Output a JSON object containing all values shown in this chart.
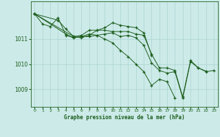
{
  "title": "Graphe pression niveau de la mer (hPa)",
  "bg_color": "#cceae8",
  "grid_color": "#aad4d0",
  "line_color": "#1a5c1a",
  "marker_color": "#1a5c1a",
  "xlim": [
    -0.5,
    23.5
  ],
  "ylim": [
    1008.3,
    1012.5
  ],
  "yticks": [
    1009,
    1010,
    1011
  ],
  "xticks": [
    0,
    1,
    2,
    3,
    4,
    5,
    6,
    7,
    8,
    9,
    10,
    11,
    12,
    13,
    14,
    15,
    16,
    17,
    18,
    19,
    20,
    21,
    22,
    23
  ],
  "series": [
    {
      "x": [
        0,
        1,
        2,
        3,
        4,
        5,
        6,
        7,
        8,
        9,
        10,
        11,
        12,
        13,
        14,
        15,
        16,
        17,
        18,
        19,
        20,
        21,
        22
      ],
      "y": [
        1012.0,
        1011.6,
        1011.5,
        1011.85,
        1011.15,
        1011.05,
        1011.1,
        1011.2,
        1011.15,
        1011.2,
        1011.25,
        1011.1,
        1011.15,
        1011.05,
        1010.75,
        1010.05,
        1009.75,
        1009.65,
        1009.7,
        1008.65,
        1010.1,
        1009.85,
        1009.72
      ]
    },
    {
      "x": [
        0,
        3,
        4,
        5,
        6,
        7,
        8,
        9,
        10,
        11,
        12,
        13,
        14,
        15
      ],
      "y": [
        1012.0,
        1011.75,
        1011.4,
        1011.1,
        1011.15,
        1011.35,
        1011.35,
        1011.45,
        1011.65,
        1011.55,
        1011.5,
        1011.45,
        1011.25,
        1010.35
      ]
    },
    {
      "x": [
        0,
        4,
        5,
        6,
        7,
        8,
        9,
        10,
        11,
        12,
        13,
        14,
        15,
        16,
        17,
        18
      ],
      "y": [
        1012.0,
        1011.2,
        1011.05,
        1011.1,
        1011.1,
        1011.15,
        1011.0,
        1010.85,
        1010.55,
        1010.3,
        1010.0,
        1009.7,
        1009.15,
        1009.4,
        1009.3,
        1008.65
      ]
    },
    {
      "x": [
        0,
        5,
        6,
        7,
        8,
        9,
        10,
        11,
        12,
        13,
        14,
        15,
        16,
        17,
        18,
        19,
        20,
        21,
        22,
        23
      ],
      "y": [
        1012.0,
        1011.1,
        1011.05,
        1011.15,
        1011.35,
        1011.35,
        1011.3,
        1011.3,
        1011.3,
        1011.2,
        1011.15,
        1010.4,
        1009.85,
        1009.85,
        1009.75,
        1008.7,
        1010.15,
        1009.85,
        1009.7,
        1009.75
      ]
    }
  ]
}
